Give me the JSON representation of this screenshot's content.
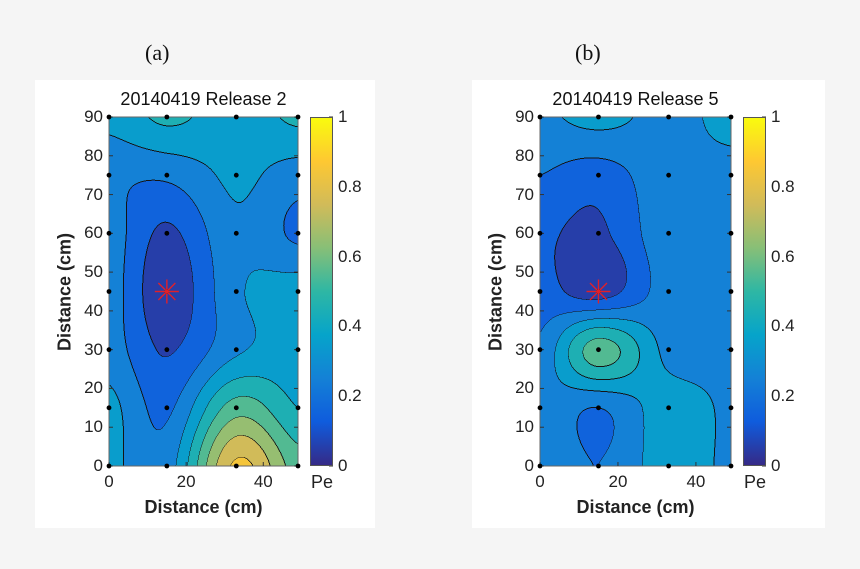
{
  "chart_data": [
    {
      "type": "contour",
      "panel_label": "(a)",
      "title": "20140419 Release 2",
      "xlabel": "Distance (cm)",
      "ylabel": "Distance (cm)",
      "xlim": [
        0,
        49
      ],
      "ylim": [
        0,
        90
      ],
      "xticks": [
        "0",
        "20",
        "40"
      ],
      "yticks": [
        "0",
        "10",
        "20",
        "30",
        "40",
        "50",
        "60",
        "70",
        "80",
        "90"
      ],
      "x": [
        0,
        15,
        33,
        49
      ],
      "y": [
        0,
        15,
        30,
        45,
        60,
        75,
        90
      ],
      "z": [
        [
          0.33,
          0.25,
          0.82,
          0.55
        ],
        [
          0.33,
          0.18,
          0.55,
          0.4
        ],
        [
          0.25,
          0.09,
          0.28,
          0.35
        ],
        [
          0.25,
          0.03,
          0.28,
          0.35
        ],
        [
          0.25,
          0.08,
          0.28,
          0.18
        ],
        [
          0.22,
          0.22,
          0.32,
          0.25
        ],
        [
          0.33,
          0.42,
          0.35,
          0.42
        ]
      ],
      "level_step": 0.1,
      "source_marker": {
        "x": 15,
        "y": 45,
        "color": "#e0202a"
      },
      "colorbar": {
        "label": "Pe",
        "range": [
          0,
          1
        ],
        "ticks": [
          "0",
          "0.2",
          "0.4",
          "0.6",
          "0.8",
          "1"
        ],
        "colormap": "parula"
      }
    },
    {
      "type": "contour",
      "panel_label": "(b)",
      "title": "20140419 Release 5",
      "xlabel": "Distance (cm)",
      "ylabel": "Distance (cm)",
      "xlim": [
        0,
        49
      ],
      "ylim": [
        0,
        90
      ],
      "xticks": [
        "0",
        "20",
        "40"
      ],
      "yticks": [
        "0",
        "10",
        "20",
        "30",
        "40",
        "50",
        "60",
        "70",
        "80",
        "90"
      ],
      "x": [
        0,
        15,
        33,
        49
      ],
      "y": [
        0,
        15,
        30,
        45,
        60,
        75,
        90
      ],
      "z": [
        [
          0.3,
          0.2,
          0.35,
          0.28
        ],
        [
          0.28,
          0.2,
          0.35,
          0.28
        ],
        [
          0.22,
          0.55,
          0.27,
          0.27
        ],
        [
          0.15,
          0.05,
          0.25,
          0.27
        ],
        [
          0.12,
          0.08,
          0.27,
          0.27
        ],
        [
          0.2,
          0.15,
          0.27,
          0.27
        ],
        [
          0.28,
          0.33,
          0.27,
          0.33
        ]
      ],
      "level_step": 0.1,
      "source_marker": {
        "x": 15,
        "y": 45,
        "color": "#e0202a"
      },
      "colorbar": {
        "label": "Pe",
        "range": [
          0,
          1
        ],
        "ticks": [
          "0",
          "0.2",
          "0.4",
          "0.6",
          "0.8",
          "1"
        ],
        "colormap": "parula"
      }
    }
  ]
}
